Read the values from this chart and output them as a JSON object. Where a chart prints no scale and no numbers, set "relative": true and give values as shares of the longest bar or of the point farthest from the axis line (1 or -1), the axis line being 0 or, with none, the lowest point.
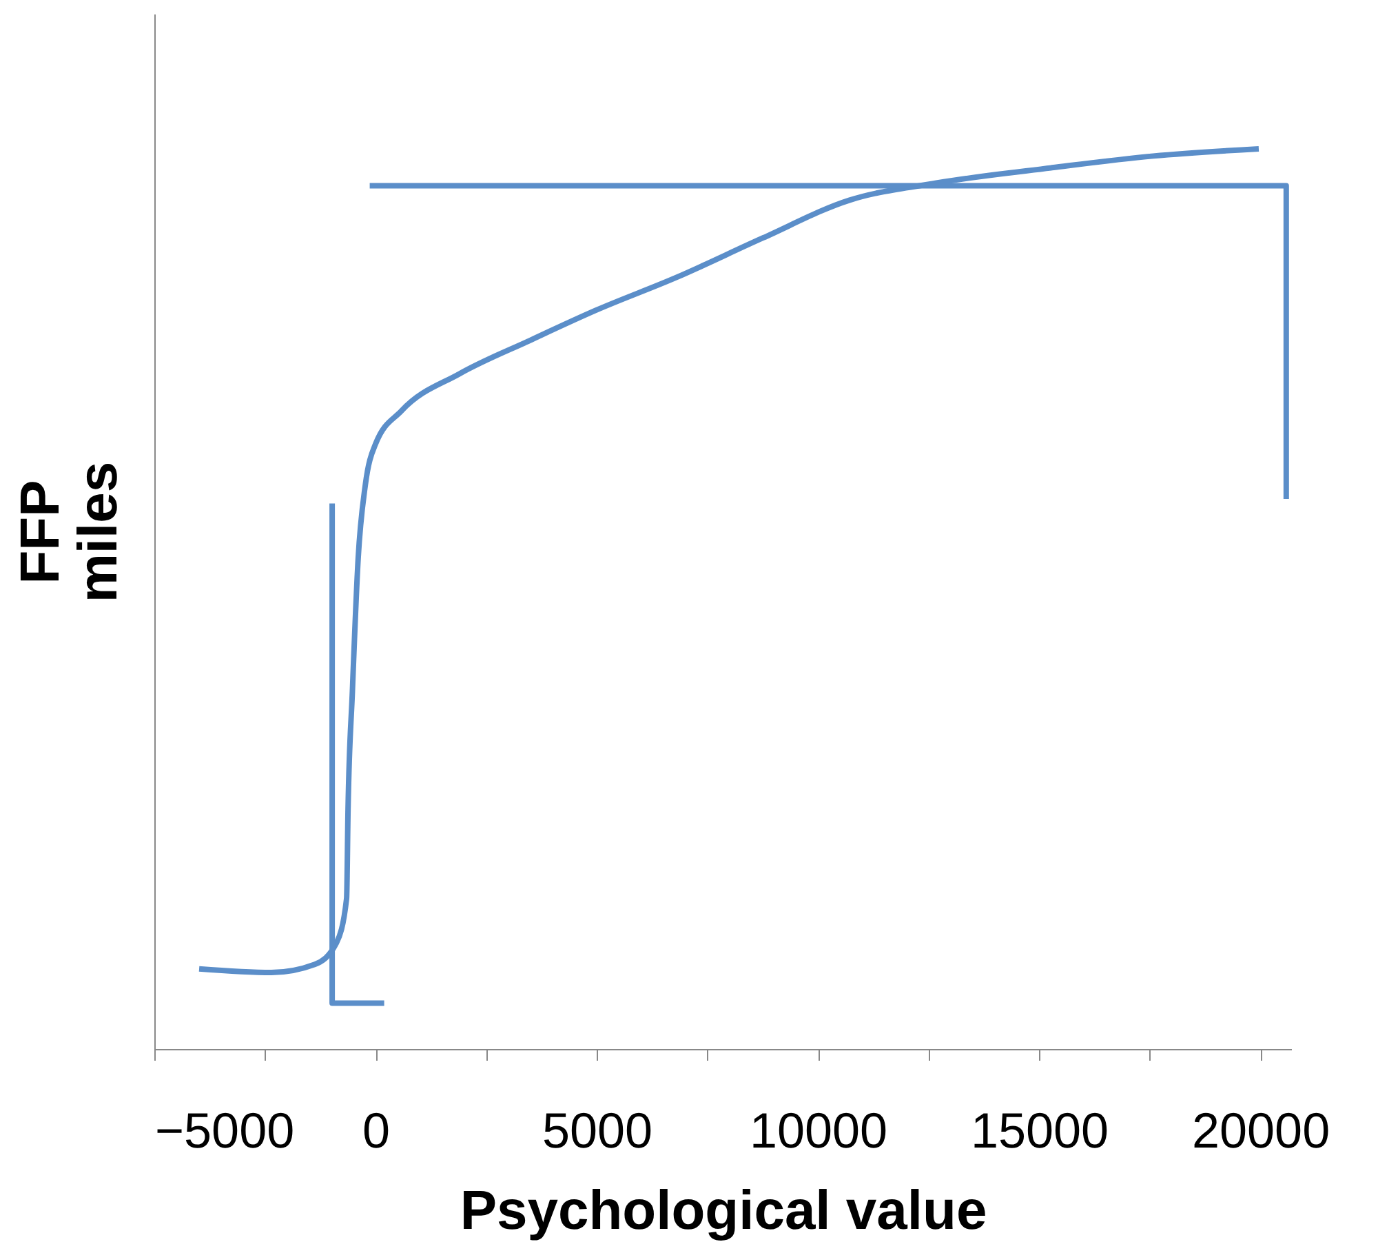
{
  "chart_data": {
    "type": "line",
    "relative": true,
    "xlabel": "Psychological value",
    "ylabel": "FFP\nmiles",
    "xlim": [
      -5000,
      20700
    ],
    "xticks": [
      -5000,
      {
        "value": -2500,
        "label": null
      },
      0,
      {
        "value": 2500,
        "label": null
      },
      5000,
      {
        "value": 7500,
        "label": null
      },
      10000,
      {
        "value": 12500,
        "label": null
      },
      15000,
      {
        "value": 17500,
        "label": null
      },
      20000
    ],
    "grid": false,
    "marker": "none",
    "line_style": "solid",
    "series": [
      {
        "color": "#5b8ec9",
        "x": [
          -3987,
          -2353,
          -1373,
          -882,
          -654,
          -621,
          -523,
          -392,
          -229,
          0,
          588,
          1895,
          3529,
          5000,
          6797,
          8758,
          10719,
          12680,
          15294,
          17582,
          19967
        ],
        "values": [
          0.089,
          0.085,
          0.094,
          0.118,
          0.167,
          0.266,
          0.397,
          0.545,
          0.627,
          0.672,
          0.709,
          0.75,
          0.788,
          0.821,
          0.857,
          0.901,
          0.943,
          0.962,
          0.979,
          0.992,
          1.0
        ]
      },
      {
        "color": "#5b8ec9",
        "x": [
          -131,
          20588,
          20588
        ],
        "values": [
          0.959,
          0.959,
          0.611
        ]
      },
      {
        "color": "#5b8ec9",
        "x": [
          -980,
          -980,
          196
        ],
        "values": [
          0.606,
          0.051,
          0.051
        ]
      }
    ]
  }
}
